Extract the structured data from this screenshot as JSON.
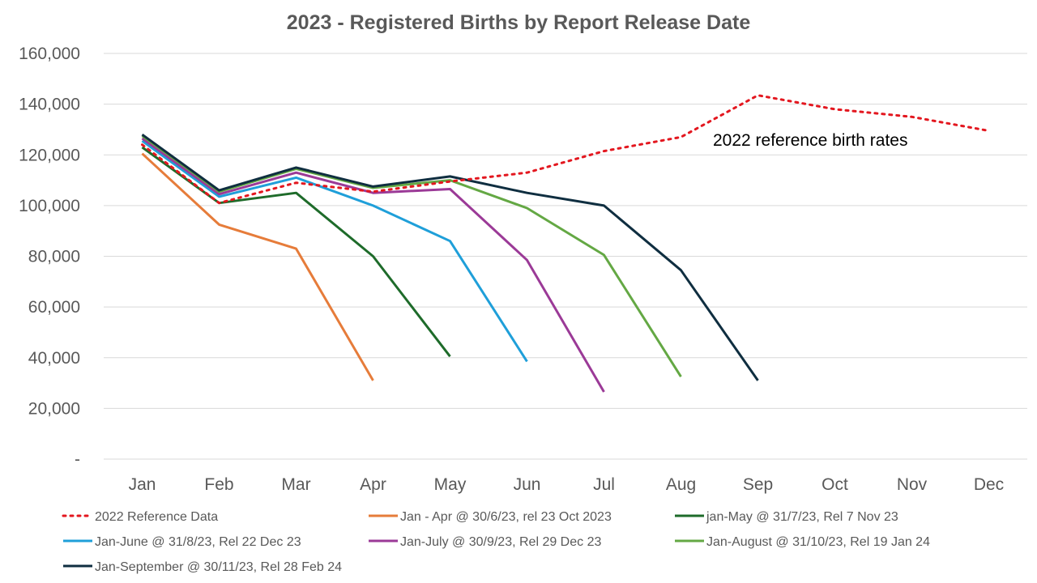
{
  "chart_data": {
    "type": "line",
    "title": "2023 - Registered Births by Report Release Date",
    "xlabel": "",
    "ylabel": "",
    "categories": [
      "Jan",
      "Feb",
      "Mar",
      "Apr",
      "May",
      "Jun",
      "Jul",
      "Aug",
      "Sep",
      "Oct",
      "Nov",
      "Dec"
    ],
    "ylim": [
      0,
      160000
    ],
    "yticks": [
      0,
      20000,
      40000,
      60000,
      80000,
      100000,
      120000,
      140000,
      160000
    ],
    "ytick_labels": [
      "-",
      "20,000",
      "40,000",
      "60,000",
      "80,000",
      "100,000",
      "120,000",
      "140,000",
      "160,000"
    ],
    "grid": "horizontal",
    "legend_position": "bottom",
    "annotation": "2022 reference birth rates",
    "series": [
      {
        "name": "2022 Reference Data",
        "color": "#e3171f",
        "dash": "dotted",
        "values": [
          124000,
          101000,
          109000,
          105500,
          109500,
          113000,
          121500,
          127000,
          143500,
          138000,
          135000,
          129500
        ]
      },
      {
        "name": "Jan - Apr @ 30/6/23, rel 23 Oct 2023",
        "color": "#e67c3a",
        "dash": "solid",
        "values": [
          120500,
          92500,
          83000,
          31000,
          null,
          null,
          null,
          null,
          null,
          null,
          null,
          null
        ]
      },
      {
        "name": "jan-May @ 31/7/23, Rel 7 Nov 23",
        "color": "#1e6b2a",
        "dash": "solid",
        "values": [
          123000,
          101000,
          105000,
          80000,
          40500,
          null,
          null,
          null,
          null,
          null,
          null,
          null
        ]
      },
      {
        "name": "Jan-June @ 31/8/23, Rel 22 Dec 23",
        "color": "#1f9fd9",
        "dash": "solid",
        "values": [
          125500,
          103500,
          111000,
          100000,
          86000,
          38500,
          null,
          null,
          null,
          null,
          null,
          null
        ]
      },
      {
        "name": "Jan-July @ 30/9/23, Rel 29 Dec 23",
        "color": "#9b3a97",
        "dash": "solid",
        "values": [
          126500,
          104500,
          113000,
          105000,
          106500,
          78500,
          26500,
          null,
          null,
          null,
          null,
          null
        ]
      },
      {
        "name": "Jan-August @ 31/10/23, Rel 19 Jan 24",
        "color": "#64a844",
        "dash": "solid",
        "values": [
          127500,
          105500,
          114500,
          107000,
          110000,
          99000,
          80500,
          32500,
          null,
          null,
          null,
          null
        ]
      },
      {
        "name": "Jan-September @ 30/11/23, Rel 28 Feb 24",
        "color": "#0f2e40",
        "dash": "solid",
        "values": [
          128000,
          106000,
          115000,
          107500,
          111500,
          105000,
          100000,
          74500,
          31000,
          null,
          null,
          null
        ]
      }
    ]
  }
}
